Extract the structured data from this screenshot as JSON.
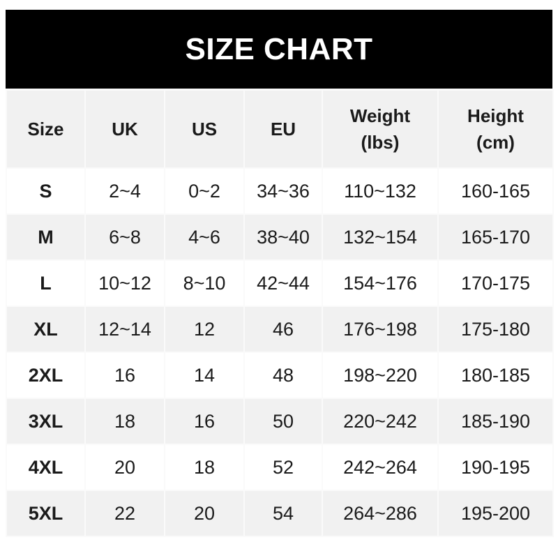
{
  "title": "SIZE CHART",
  "headers": [
    "Size",
    "UK",
    "US",
    "EU",
    "Weight\n(lbs)",
    "Height\n(cm)"
  ],
  "header_lines": [
    [
      "Size"
    ],
    [
      "UK"
    ],
    [
      "US"
    ],
    [
      "EU"
    ],
    [
      "Weight",
      "(lbs)"
    ],
    [
      "Height",
      "(cm)"
    ]
  ],
  "rows": [
    [
      "S",
      "2~4",
      "0~2",
      "34~36",
      "110~132",
      "160-165"
    ],
    [
      "M",
      "6~8",
      "4~6",
      "38~40",
      "132~154",
      "165-170"
    ],
    [
      "L",
      "10~12",
      "8~10",
      "42~44",
      "154~176",
      "170-175"
    ],
    [
      "XL",
      "12~14",
      "12",
      "46",
      "176~198",
      "175-180"
    ],
    [
      "2XL",
      "16",
      "14",
      "48",
      "198~220",
      "180-185"
    ],
    [
      "3XL",
      "18",
      "16",
      "50",
      "220~242",
      "185-190"
    ],
    [
      "4XL",
      "20",
      "18",
      "52",
      "242~264",
      "190-195"
    ],
    [
      "5XL",
      "22",
      "20",
      "54",
      "264~286",
      "195-200"
    ]
  ],
  "colors": {
    "title_bg": "#000000",
    "title_text": "#ffffff",
    "stripe": "#f1f1f1"
  }
}
